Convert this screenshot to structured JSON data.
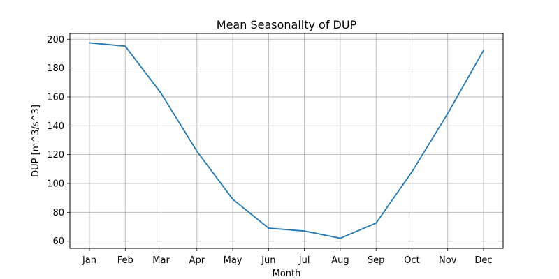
{
  "chart_data": {
    "type": "line",
    "title": "Mean Seasonality of DUP",
    "xlabel": "Month",
    "ylabel": "DUP [m^3/s^3]",
    "categories": [
      "Jan",
      "Feb",
      "Mar",
      "Apr",
      "May",
      "Jun",
      "Jul",
      "Aug",
      "Sep",
      "Oct",
      "Nov",
      "Dec"
    ],
    "series": [
      {
        "color": "#1f77b4",
        "values": [
          197.5,
          195.2,
          162.5,
          122.3,
          89.0,
          69.0,
          67.0,
          62.0,
          72.5,
          108.0,
          148.5,
          192.3
        ]
      }
    ],
    "ylim": [
      55,
      204
    ],
    "yticks": [
      60,
      80,
      100,
      120,
      140,
      160,
      180,
      200
    ],
    "grid": true,
    "legend": "none"
  }
}
